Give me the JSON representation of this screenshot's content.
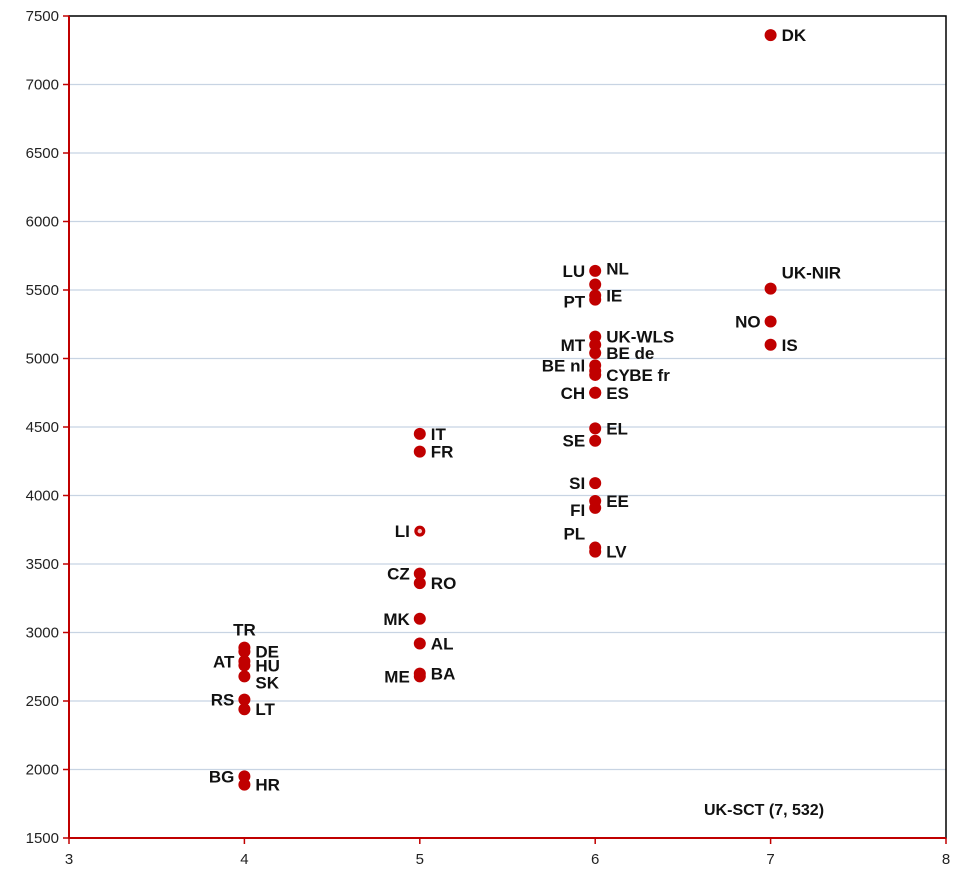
{
  "chart_data": {
    "type": "scatter",
    "title": "",
    "xlabel": "",
    "ylabel": "",
    "xlim": [
      3,
      8
    ],
    "ylim": [
      1500,
      7500
    ],
    "xticks": [
      3,
      4,
      5,
      6,
      7,
      8
    ],
    "yticks": [
      1500,
      2000,
      2500,
      3000,
      3500,
      4000,
      4500,
      5000,
      5500,
      6000,
      6500,
      7000,
      7500
    ],
    "grid": "horizontal",
    "colors": {
      "point": "#c00000",
      "axis": "#c00000",
      "grid": "#c8d4e3",
      "frame": "#000000"
    },
    "points": [
      {
        "label": "DK",
        "x": 7,
        "y": 7360,
        "side": "right"
      },
      {
        "label": "UK-NIR",
        "x": 7,
        "y": 5510,
        "side": "right-up"
      },
      {
        "label": "NO",
        "x": 7,
        "y": 5270,
        "side": "left"
      },
      {
        "label": "IS",
        "x": 7,
        "y": 5100,
        "side": "right"
      },
      {
        "label": "LU",
        "x": 6,
        "y": 5640,
        "side": "left"
      },
      {
        "label": "NL",
        "x": 6,
        "y": 5540,
        "side": "right-up"
      },
      {
        "label": "PT",
        "x": 6,
        "y": 5430,
        "side": "left"
      },
      {
        "label": "IE",
        "x": 6,
        "y": 5460,
        "side": "right"
      },
      {
        "label": "MT",
        "x": 6,
        "y": 5100,
        "side": "left"
      },
      {
        "label": "UK-WLS",
        "x": 6,
        "y": 5160,
        "side": "right"
      },
      {
        "label": "BE de",
        "x": 6,
        "y": 5040,
        "side": "right"
      },
      {
        "label": "BE nl",
        "x": 6,
        "y": 4950,
        "side": "left"
      },
      {
        "label": "CY",
        "x": 6,
        "y": 4880,
        "side": "right"
      },
      {
        "label": "BE fr",
        "x": 6,
        "y": 4910,
        "side": "right-far"
      },
      {
        "label": "CH",
        "x": 6,
        "y": 4750,
        "side": "left"
      },
      {
        "label": "ES",
        "x": 6,
        "y": 4750,
        "side": "right"
      },
      {
        "label": "EL",
        "x": 6,
        "y": 4490,
        "side": "right"
      },
      {
        "label": "SE",
        "x": 6,
        "y": 4400,
        "side": "left"
      },
      {
        "label": "SI",
        "x": 6,
        "y": 4090,
        "side": "left"
      },
      {
        "label": "EE",
        "x": 6,
        "y": 3960,
        "side": "right"
      },
      {
        "label": "FI",
        "x": 6,
        "y": 3910,
        "side": "left"
      },
      {
        "label": "PL",
        "x": 6,
        "y": 3620,
        "side": "left-up"
      },
      {
        "label": "LV",
        "x": 6,
        "y": 3590,
        "side": "right"
      },
      {
        "label": "IT",
        "x": 5,
        "y": 4450,
        "side": "right"
      },
      {
        "label": "FR",
        "x": 5,
        "y": 4320,
        "side": "right"
      },
      {
        "label": "LI",
        "x": 5,
        "y": 3740,
        "side": "left",
        "marker": "hollow"
      },
      {
        "label": "CZ",
        "x": 5,
        "y": 3430,
        "side": "left"
      },
      {
        "label": "RO",
        "x": 5,
        "y": 3360,
        "side": "right"
      },
      {
        "label": "MK",
        "x": 5,
        "y": 3100,
        "side": "left"
      },
      {
        "label": "AL",
        "x": 5,
        "y": 2920,
        "side": "right"
      },
      {
        "label": "ME",
        "x": 5,
        "y": 2680,
        "side": "left"
      },
      {
        "label": "BA",
        "x": 5,
        "y": 2700,
        "side": "right"
      },
      {
        "label": "TR",
        "x": 4,
        "y": 2890,
        "side": "up"
      },
      {
        "label": "DE",
        "x": 4,
        "y": 2860,
        "side": "right"
      },
      {
        "label": "AT",
        "x": 4,
        "y": 2790,
        "side": "left"
      },
      {
        "label": "HU",
        "x": 4,
        "y": 2760,
        "side": "right"
      },
      {
        "label": "SK",
        "x": 4,
        "y": 2680,
        "side": "right-down"
      },
      {
        "label": "RS",
        "x": 4,
        "y": 2510,
        "side": "left"
      },
      {
        "label": "LT",
        "x": 4,
        "y": 2440,
        "side": "right"
      },
      {
        "label": "BG",
        "x": 4,
        "y": 1950,
        "side": "left"
      },
      {
        "label": "HR",
        "x": 4,
        "y": 1890,
        "side": "right"
      }
    ],
    "annotation": "UK-SCT (7, 532)"
  }
}
